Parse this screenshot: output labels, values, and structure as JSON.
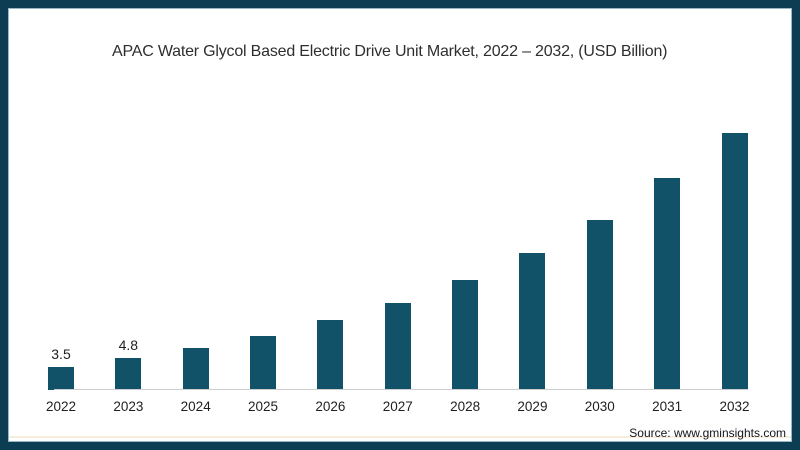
{
  "title": {
    "text": "APAC Water Glycol Based Electric Drive Unit Market, 2022 – 2032, (USD Billion)"
  },
  "source": {
    "text": "Source: www.gminsights.com"
  },
  "colors": {
    "frame": "#0d3d52",
    "frame_inner": "#3d7e9b",
    "bar": "#125268",
    "axis": "#cccccc",
    "title_text": "#2e2e2e",
    "label_text": "#1f1f1f",
    "source_text": "#14141e",
    "accent_strip": "#f6eddc"
  },
  "chart_data": {
    "type": "bar",
    "title": "APAC Water Glycol Based Electric Drive Unit Market, 2022 – 2032, (USD Billion)",
    "unit": "USD Billion",
    "categories": [
      "2022",
      "2023",
      "2024",
      "2025",
      "2026",
      "2027",
      "2028",
      "2029",
      "2030",
      "2031",
      "2032"
    ],
    "values": [
      3.5,
      4.8,
      6.3,
      8.1,
      10.4,
      13.0,
      16.4,
      20.4,
      25.4,
      31.6,
      38.4
    ],
    "data_labels": [
      "3.5",
      "4.8",
      "",
      "",
      "",
      "",
      "",
      "",
      "",
      "",
      ""
    ],
    "ylim": [
      0,
      40
    ],
    "grid": false,
    "legend": null,
    "bar_color": "#125268",
    "source": "Source: www.gminsights.com"
  }
}
